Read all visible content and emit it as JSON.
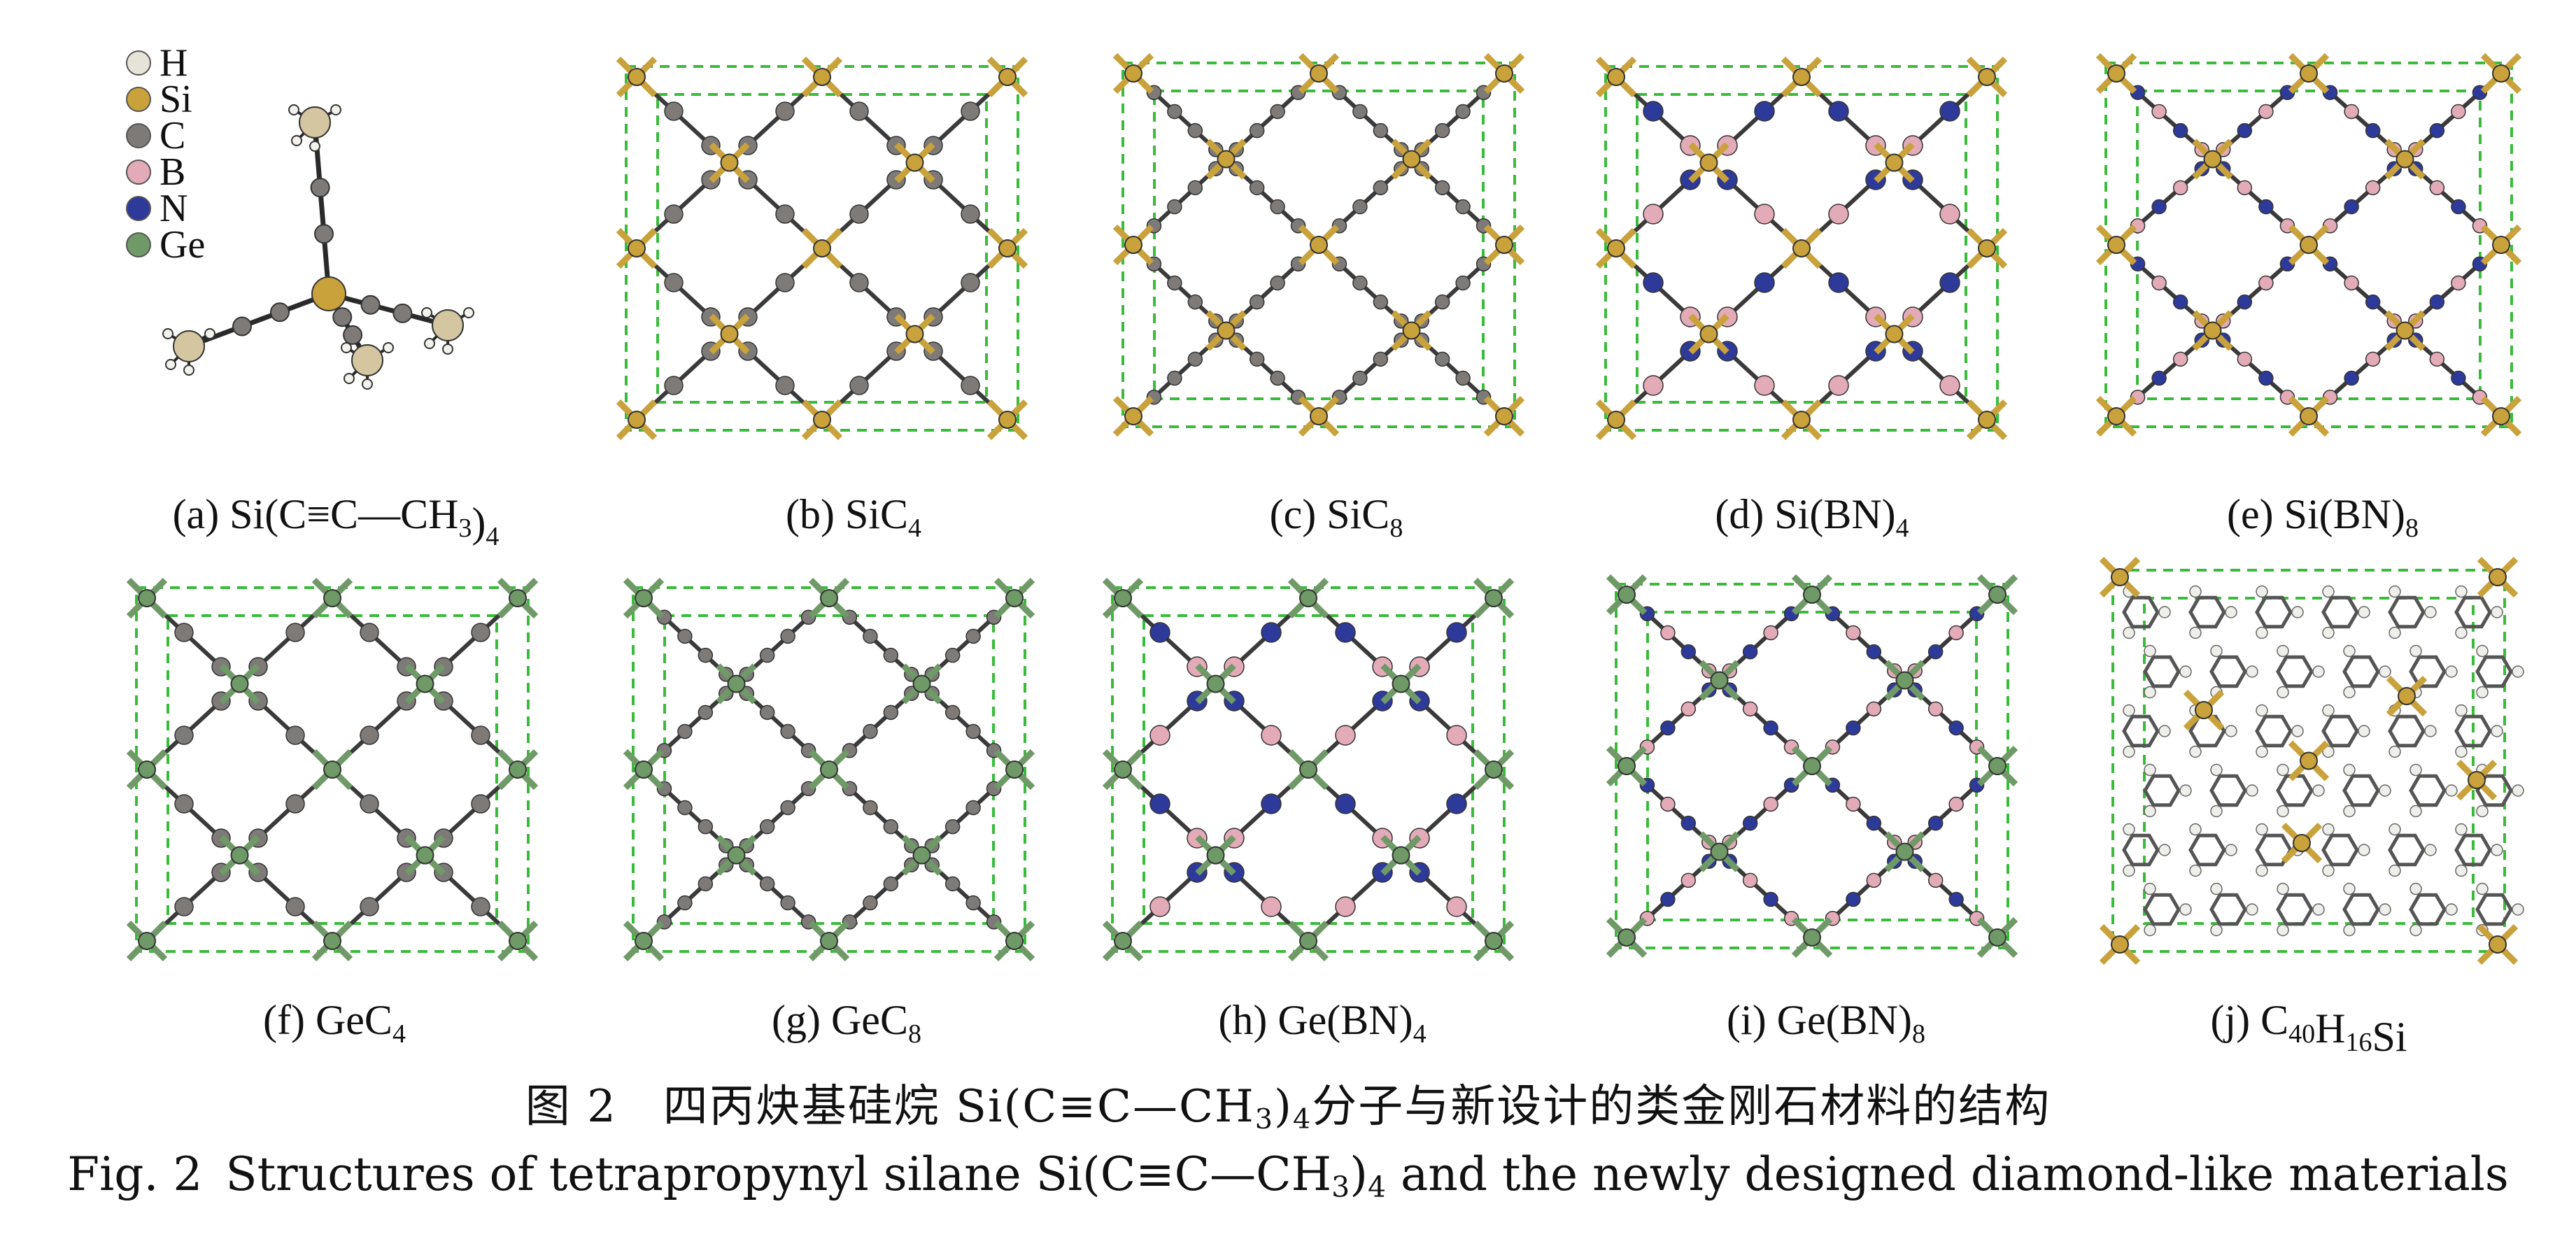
{
  "legend": {
    "items": [
      {
        "label": "H",
        "color": "#e6e3d8"
      },
      {
        "label": "Si",
        "color": "#c9a23c"
      },
      {
        "label": "C",
        "color": "#7d7a78"
      },
      {
        "label": "B",
        "color": "#e3aab8"
      },
      {
        "label": "N",
        "color": "#2e3a9a"
      },
      {
        "label": "Ge",
        "color": "#6f9a68"
      }
    ]
  },
  "panels": [
    {
      "id": "a",
      "prefix": "(a) ",
      "main": "Si(C≡C—CH",
      "sub1": "3",
      "mid": ")",
      "sub2": "4",
      "tail": ""
    },
    {
      "id": "b",
      "prefix": "(b) ",
      "main": "SiC",
      "sub1": "4",
      "mid": "",
      "sub2": "",
      "tail": ""
    },
    {
      "id": "c",
      "prefix": "(c) ",
      "main": "SiC",
      "sub1": "8",
      "mid": "",
      "sub2": "",
      "tail": ""
    },
    {
      "id": "d",
      "prefix": "(d) ",
      "main": "Si(BN)",
      "sub1": "4",
      "mid": "",
      "sub2": "",
      "tail": ""
    },
    {
      "id": "e",
      "prefix": "(e) ",
      "main": "Si(BN)",
      "sub1": "8",
      "mid": "",
      "sub2": "",
      "tail": ""
    },
    {
      "id": "f",
      "prefix": "(f) ",
      "main": "GeC",
      "sub1": "4",
      "mid": "",
      "sub2": "",
      "tail": ""
    },
    {
      "id": "g",
      "prefix": "(g) ",
      "main": "GeC",
      "sub1": "8",
      "mid": "",
      "sub2": "",
      "tail": ""
    },
    {
      "id": "h",
      "prefix": "(h) ",
      "main": "Ge(BN)",
      "sub1": "4",
      "mid": "",
      "sub2": "",
      "tail": ""
    },
    {
      "id": "i",
      "prefix": "(i) ",
      "main": "Ge(BN)",
      "sub1": "8",
      "mid": "",
      "sub2": "",
      "tail": ""
    },
    {
      "id": "j",
      "prefix": "(j) ",
      "main": "C",
      "sub1": "40",
      "mid": "H",
      "sub2": "16",
      "tail": "Si"
    }
  ],
  "figure": {
    "title_cn_a": "图 2　四丙炔基硅烷 Si(C≡C—CH",
    "title_cn_sub1": "3",
    "title_cn_b": ")",
    "title_cn_sub2": "4",
    "title_cn_c": "分子与新设计的类金刚石材料的结构",
    "title_en_a": "Fig. 2 Structures of tetrapropynyl silane Si(C≡C—CH",
    "title_en_sub1": "3",
    "title_en_b": ")",
    "title_en_sub2": "4",
    "title_en_c": " and the newly designed diamond-like materials"
  },
  "colors": {
    "cell_edge": "#3bbb3b",
    "bond": "#3a3a3a"
  }
}
